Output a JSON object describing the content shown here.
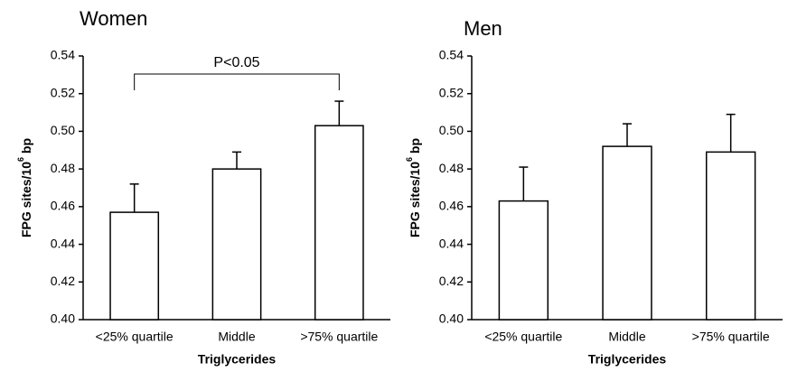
{
  "chart_data": [
    {
      "type": "bar",
      "title": "Women",
      "ylabel": {
        "text": "FPG sites/10",
        "superscript": "6",
        "suffix": " bp"
      },
      "xlabel": "Triglycerides",
      "categories": [
        "<25% quartile",
        "Middle",
        ">75% quartile"
      ],
      "values": [
        0.457,
        0.48,
        0.503
      ],
      "errors": [
        0.015,
        0.009,
        0.013
      ],
      "color": "#ffffff",
      "ylim": [
        0.4,
        0.54
      ],
      "yticks": [
        {
          "value": 0.4,
          "label": "0.40"
        },
        {
          "value": 0.42,
          "label": "0.42"
        },
        {
          "value": 0.44,
          "label": "0.44"
        },
        {
          "value": 0.46,
          "label": "0.46"
        },
        {
          "value": 0.48,
          "label": "0.48"
        },
        {
          "value": 0.5,
          "label": "0.50"
        },
        {
          "value": 0.52,
          "label": "0.52"
        },
        {
          "value": 0.54,
          "label": "0.54"
        }
      ],
      "annotation": {
        "text": "P<0.05",
        "from": 0,
        "to": 2
      }
    },
    {
      "type": "bar",
      "title": "Men",
      "ylabel": {
        "text": "FPG sites/10",
        "superscript": "6",
        "suffix": " bp"
      },
      "xlabel": "Triglycerides",
      "categories": [
        "<25% quartile",
        "Middle",
        ">75% quartile"
      ],
      "values": [
        0.463,
        0.492,
        0.489
      ],
      "errors": [
        0.018,
        0.012,
        0.02
      ],
      "color": "#ffffff",
      "ylim": [
        0.4,
        0.54
      ],
      "yticks": [
        {
          "value": 0.4,
          "label": "0.40"
        },
        {
          "value": 0.42,
          "label": "0.42"
        },
        {
          "value": 0.44,
          "label": "0.44"
        },
        {
          "value": 0.46,
          "label": "0.46"
        },
        {
          "value": 0.48,
          "label": "0.48"
        },
        {
          "value": 0.5,
          "label": "0.50"
        },
        {
          "value": 0.52,
          "label": "0.52"
        },
        {
          "value": 0.54,
          "label": "0.54"
        }
      ]
    }
  ]
}
